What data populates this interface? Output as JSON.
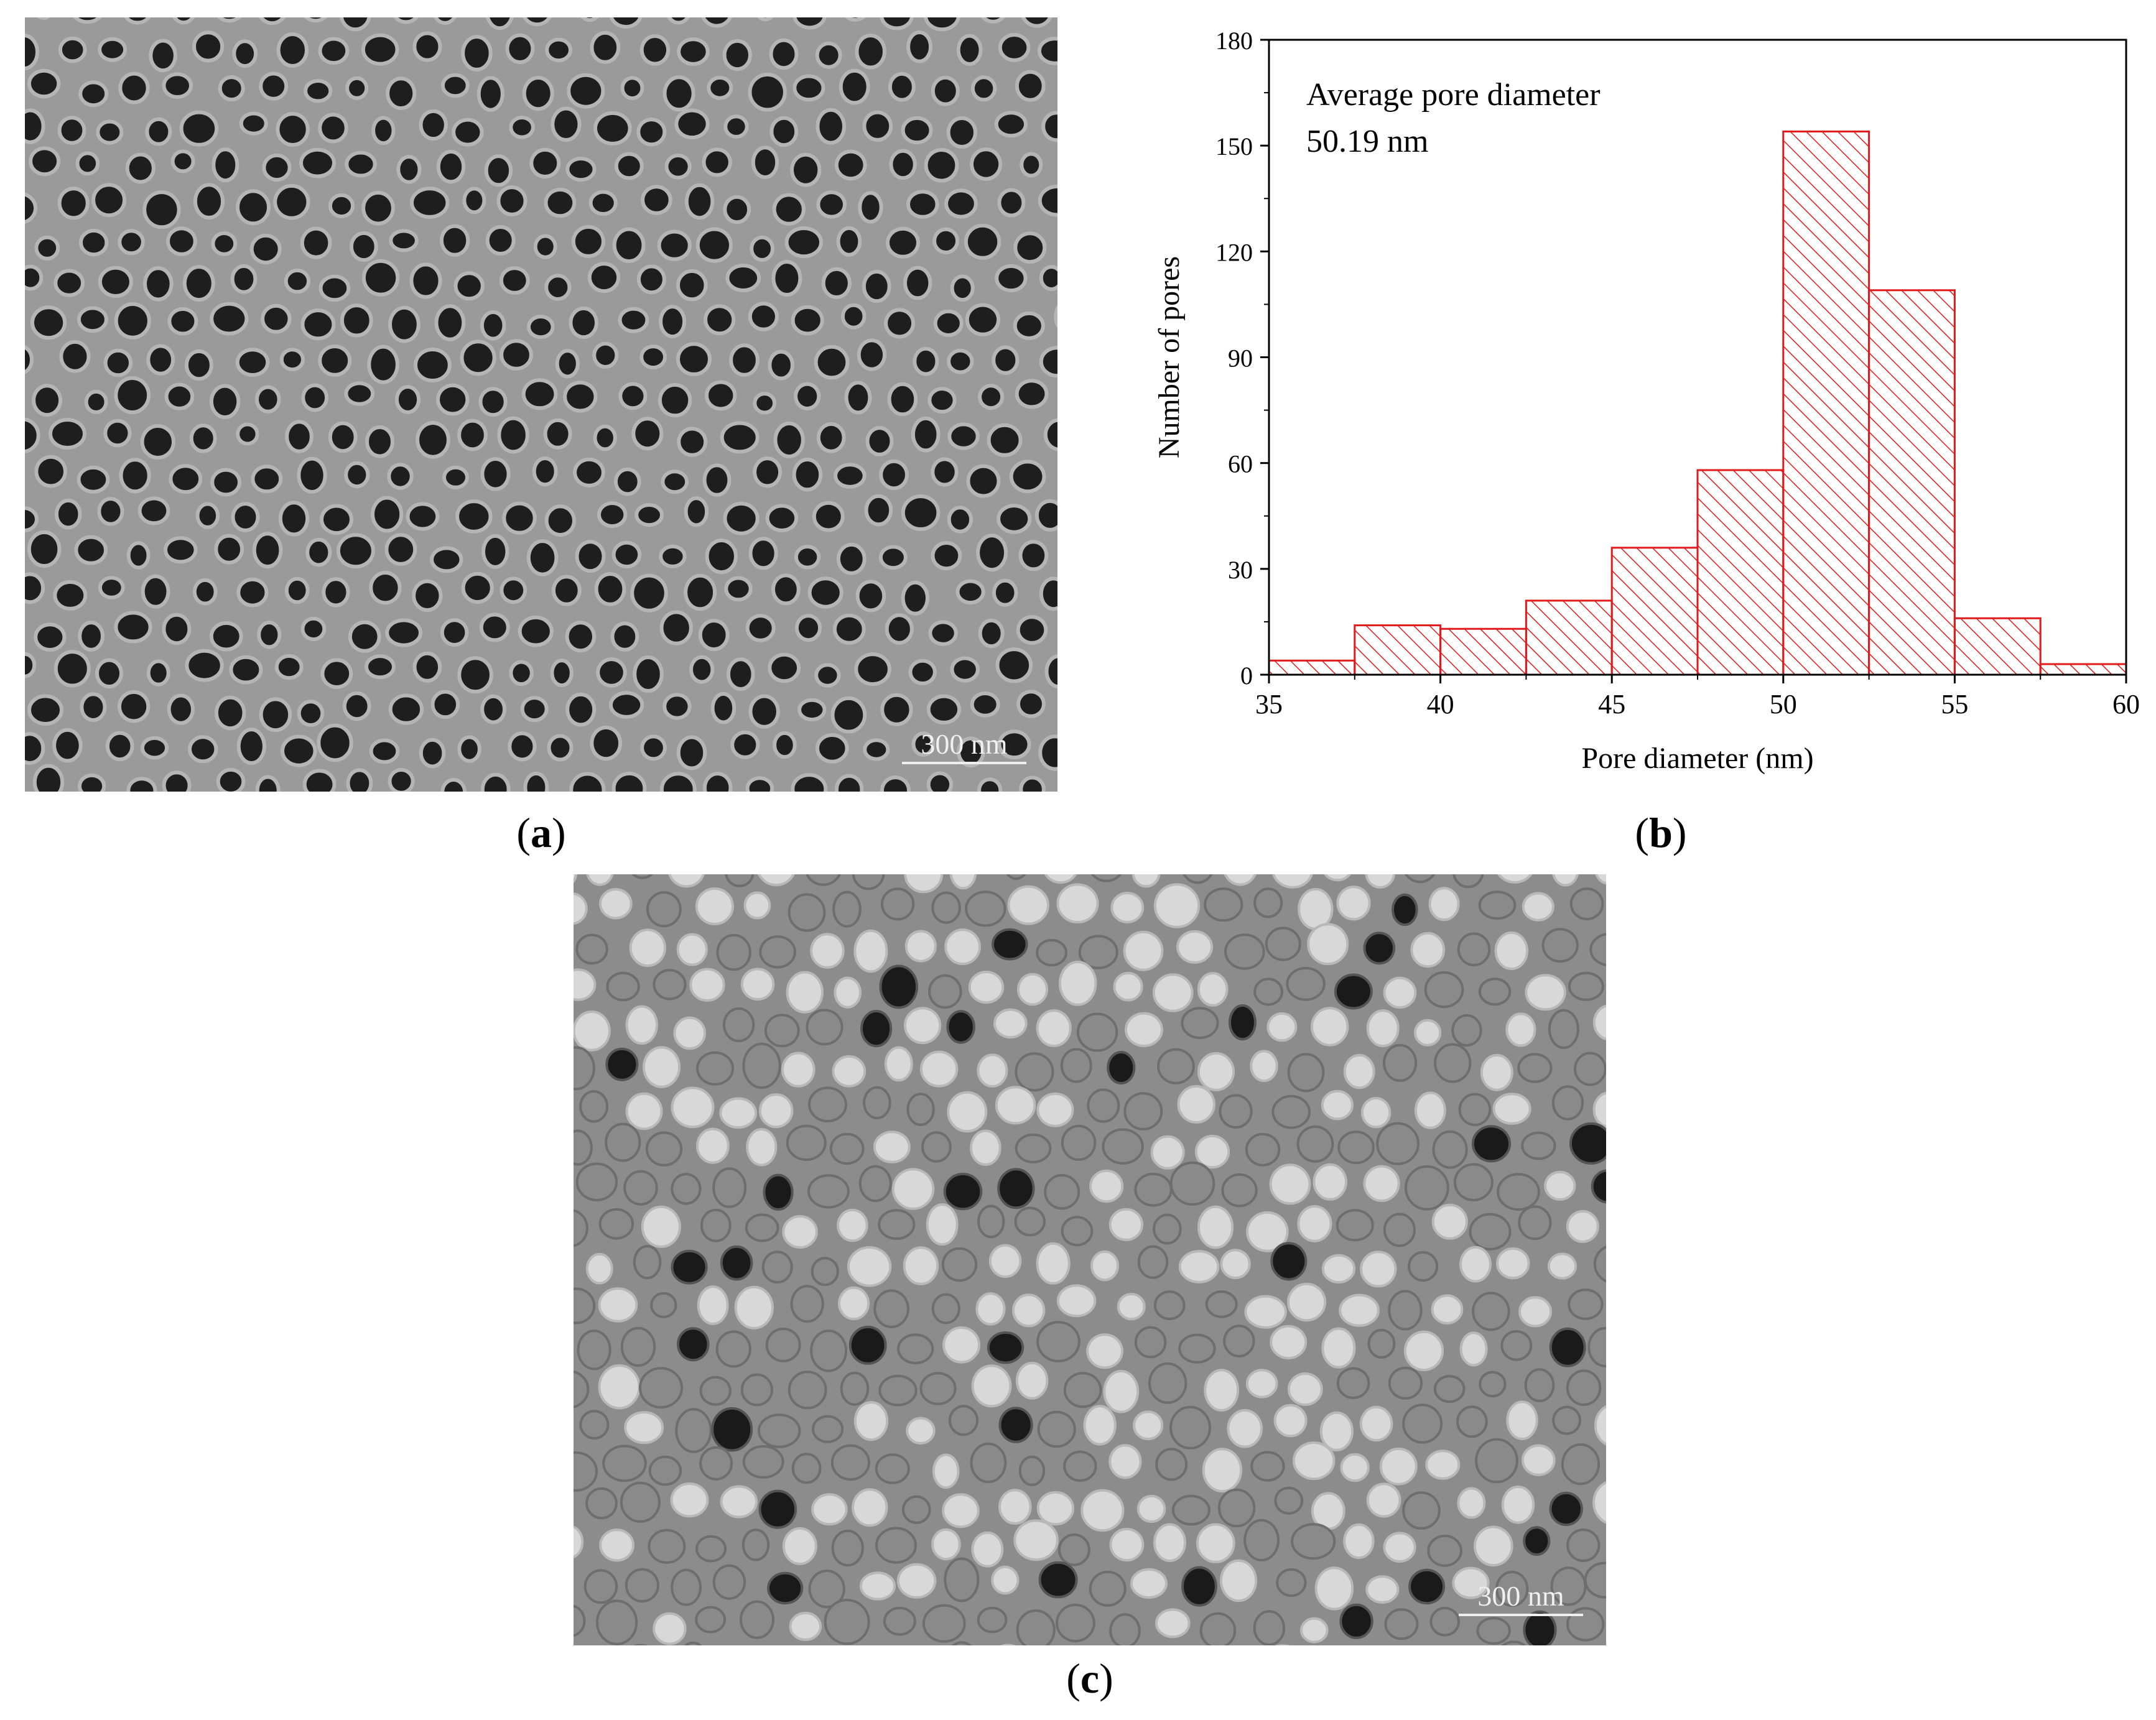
{
  "panel_a": {
    "caption_letter": "a",
    "scale_bar_label": "300 nm"
  },
  "panel_b": {
    "caption_letter": "b"
  },
  "panel_c": {
    "caption_letter": "c",
    "scale_bar_label": "300 nm"
  },
  "colors": {
    "bar_stroke": "#e31a1c",
    "hatch": "#e31a1c",
    "sem_background_a": "#9a9a9a",
    "sem_pore": "#1e1e1e",
    "sem_background_c": "#8c8c8c",
    "sem_particle": "#d8d8d8"
  },
  "chart_data": {
    "type": "bar",
    "title": "",
    "xlabel": "Pore diameter (nm)",
    "ylabel": "Number of pores",
    "xlim": [
      35,
      60
    ],
    "ylim": [
      0,
      180
    ],
    "xticks": [
      35,
      40,
      45,
      50,
      55,
      60
    ],
    "yticks": [
      0,
      30,
      60,
      90,
      120,
      150,
      180
    ],
    "bin_edges": [
      35,
      37.5,
      40,
      42.5,
      45,
      47.5,
      50,
      52.5,
      55,
      57.5,
      60
    ],
    "values": [
      4,
      14,
      13,
      21,
      36,
      58,
      154,
      109,
      16,
      3
    ],
    "annotation_line1": "Average pore diameter",
    "annotation_line2": "50.19 nm",
    "grid": false,
    "fill": "diagonal hatch"
  }
}
